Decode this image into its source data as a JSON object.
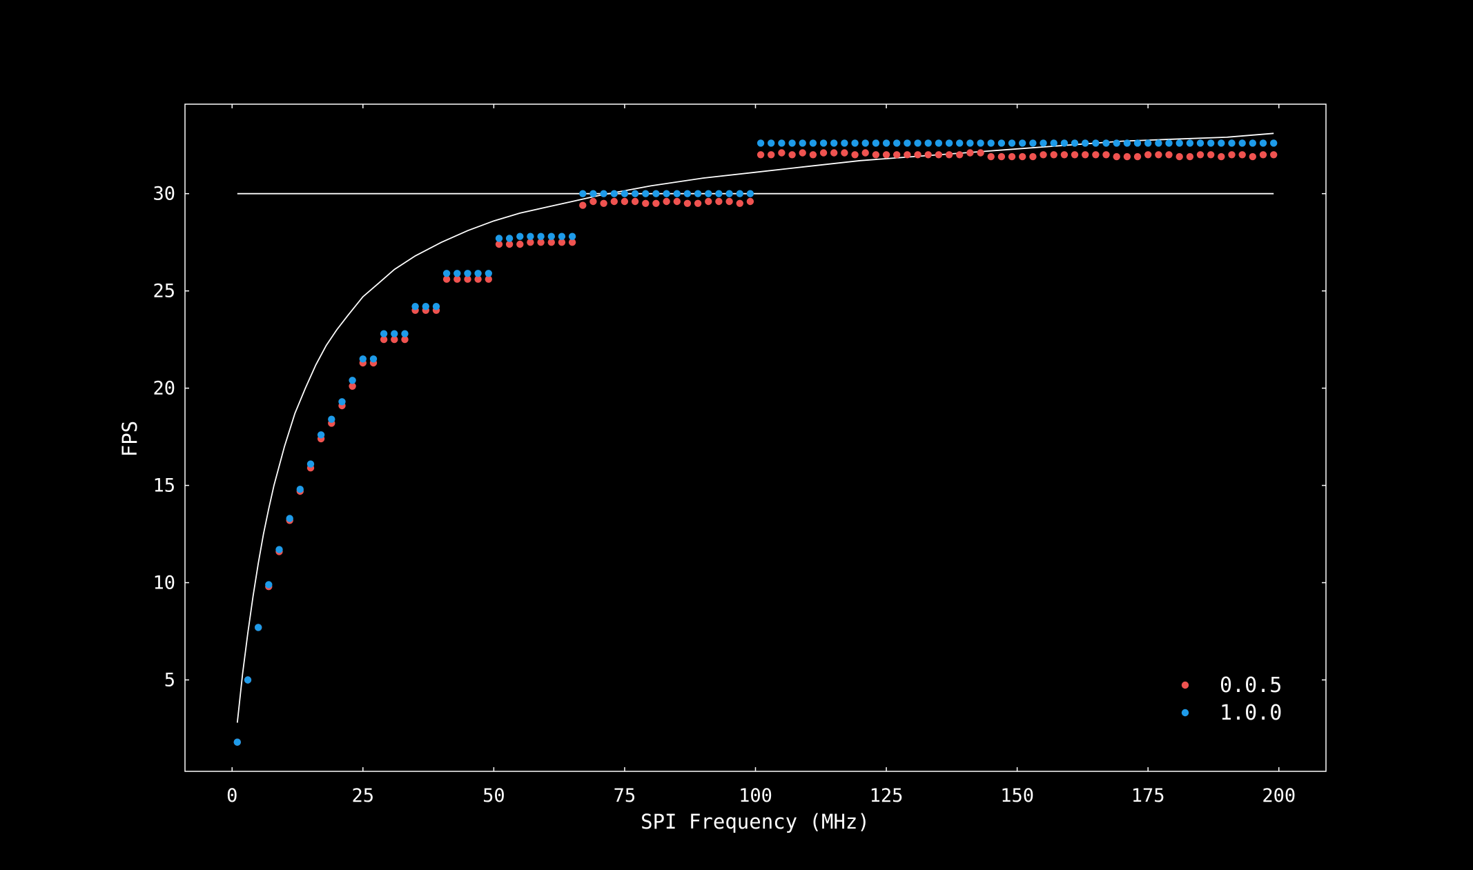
{
  "chart_data": {
    "type": "scatter",
    "xlabel": "SPI Frequency (MHz)",
    "ylabel": "FPS",
    "xlim": [
      -9,
      209
    ],
    "ylim": [
      0.3,
      34.6
    ],
    "xticks": [
      0,
      25,
      50,
      75,
      100,
      125,
      150,
      175,
      200
    ],
    "yticks": [
      5,
      10,
      15,
      20,
      25,
      30
    ],
    "grid": false,
    "legend_position": "bottom-right",
    "background": "#000000",
    "foreground": "#ffffff",
    "series": [
      {
        "name": "0.0.5",
        "color": "#ef5350",
        "x": [
          1,
          3,
          5,
          7,
          9,
          11,
          13,
          15,
          17,
          19,
          21,
          23,
          25,
          27,
          29,
          31,
          33,
          35,
          37,
          39,
          41,
          43,
          45,
          47,
          49,
          51,
          53,
          55,
          57,
          59,
          61,
          63,
          65,
          67,
          69,
          71,
          73,
          75,
          77,
          79,
          81,
          83,
          85,
          87,
          89,
          91,
          93,
          95,
          97,
          99,
          101,
          103,
          105,
          107,
          109,
          111,
          113,
          115,
          117,
          119,
          121,
          123,
          125,
          127,
          129,
          131,
          133,
          135,
          137,
          139,
          141,
          143,
          145,
          147,
          149,
          151,
          153,
          155,
          157,
          159,
          161,
          163,
          165,
          167,
          169,
          171,
          173,
          175,
          177,
          179,
          181,
          183,
          185,
          187,
          189,
          191,
          193,
          195,
          197,
          199
        ],
        "y": [
          1.8,
          5.0,
          7.7,
          9.8,
          11.6,
          13.2,
          14.7,
          15.9,
          17.4,
          18.2,
          19.1,
          20.1,
          21.3,
          21.3,
          22.5,
          22.5,
          22.5,
          24.0,
          24.0,
          24.0,
          25.6,
          25.6,
          25.6,
          25.6,
          25.6,
          27.4,
          27.4,
          27.4,
          27.5,
          27.5,
          27.5,
          27.5,
          27.5,
          29.4,
          29.6,
          29.5,
          29.6,
          29.6,
          29.6,
          29.5,
          29.5,
          29.6,
          29.6,
          29.5,
          29.5,
          29.6,
          29.6,
          29.6,
          29.5,
          29.6,
          32.0,
          32.0,
          32.1,
          32.0,
          32.1,
          32.0,
          32.1,
          32.1,
          32.1,
          32.0,
          32.1,
          32.0,
          32.0,
          32.0,
          32.0,
          32.0,
          32.0,
          32.0,
          32.0,
          32.0,
          32.1,
          32.1,
          31.9,
          31.9,
          31.9,
          31.9,
          31.9,
          32.0,
          32.0,
          32.0,
          32.0,
          32.0,
          32.0,
          32.0,
          31.9,
          31.9,
          31.9,
          32.0,
          32.0,
          32.0,
          31.9,
          31.9,
          32.0,
          32.0,
          31.9,
          32.0,
          32.0,
          31.9,
          32.0,
          32.0
        ]
      },
      {
        "name": "1.0.0",
        "color": "#1e9be9",
        "x": [
          1,
          3,
          5,
          7,
          9,
          11,
          13,
          15,
          17,
          19,
          21,
          23,
          25,
          27,
          29,
          31,
          33,
          35,
          37,
          39,
          41,
          43,
          45,
          47,
          49,
          51,
          53,
          55,
          57,
          59,
          61,
          63,
          65,
          67,
          69,
          71,
          73,
          75,
          77,
          79,
          81,
          83,
          85,
          87,
          89,
          91,
          93,
          95,
          97,
          99,
          101,
          103,
          105,
          107,
          109,
          111,
          113,
          115,
          117,
          119,
          121,
          123,
          125,
          127,
          129,
          131,
          133,
          135,
          137,
          139,
          141,
          143,
          145,
          147,
          149,
          151,
          153,
          155,
          157,
          159,
          161,
          163,
          165,
          167,
          169,
          171,
          173,
          175,
          177,
          179,
          181,
          183,
          185,
          187,
          189,
          191,
          193,
          195,
          197,
          199
        ],
        "y": [
          1.8,
          5.0,
          7.7,
          9.9,
          11.7,
          13.3,
          14.8,
          16.1,
          17.6,
          18.4,
          19.3,
          20.4,
          21.5,
          21.5,
          22.8,
          22.8,
          22.8,
          24.2,
          24.2,
          24.2,
          25.9,
          25.9,
          25.9,
          25.9,
          25.9,
          27.7,
          27.7,
          27.8,
          27.8,
          27.8,
          27.8,
          27.8,
          27.8,
          30.0,
          30.0,
          30.0,
          30.0,
          30.0,
          30.0,
          30.0,
          30.0,
          30.0,
          30.0,
          30.0,
          30.0,
          30.0,
          30.0,
          30.0,
          30.0,
          30.0,
          32.6,
          32.6,
          32.6,
          32.6,
          32.6,
          32.6,
          32.6,
          32.6,
          32.6,
          32.6,
          32.6,
          32.6,
          32.6,
          32.6,
          32.6,
          32.6,
          32.6,
          32.6,
          32.6,
          32.6,
          32.6,
          32.6,
          32.6,
          32.6,
          32.6,
          32.6,
          32.6,
          32.6,
          32.6,
          32.6,
          32.6,
          32.6,
          32.6,
          32.6,
          32.6,
          32.6,
          32.6,
          32.6,
          32.6,
          32.6,
          32.6,
          32.6,
          32.6,
          32.6,
          32.6,
          32.6,
          32.6,
          32.6,
          32.6,
          32.6
        ]
      }
    ],
    "lines": [
      {
        "kind": "curve",
        "color": "#ffffff",
        "x": [
          1,
          2,
          3,
          4,
          5,
          6,
          7,
          8,
          9,
          10,
          12,
          14,
          16,
          18,
          20,
          22,
          25,
          28,
          31,
          35,
          40,
          45,
          50,
          55,
          60,
          65,
          70,
          80,
          90,
          100,
          110,
          120,
          130,
          140,
          150,
          160,
          170,
          180,
          190,
          199
        ],
        "y": [
          2.8,
          5.3,
          7.4,
          9.3,
          11.0,
          12.5,
          13.8,
          15.0,
          16.0,
          17.0,
          18.7,
          20.0,
          21.2,
          22.2,
          23.0,
          23.7,
          24.7,
          25.4,
          26.1,
          26.8,
          27.5,
          28.1,
          28.6,
          29.0,
          29.3,
          29.6,
          29.9,
          30.4,
          30.8,
          31.1,
          31.4,
          31.7,
          31.9,
          32.1,
          32.3,
          32.5,
          32.7,
          32.8,
          32.9,
          33.1
        ]
      },
      {
        "kind": "hline",
        "color": "#ffffff",
        "x": [
          1,
          199
        ],
        "y": [
          30,
          30
        ]
      }
    ]
  }
}
